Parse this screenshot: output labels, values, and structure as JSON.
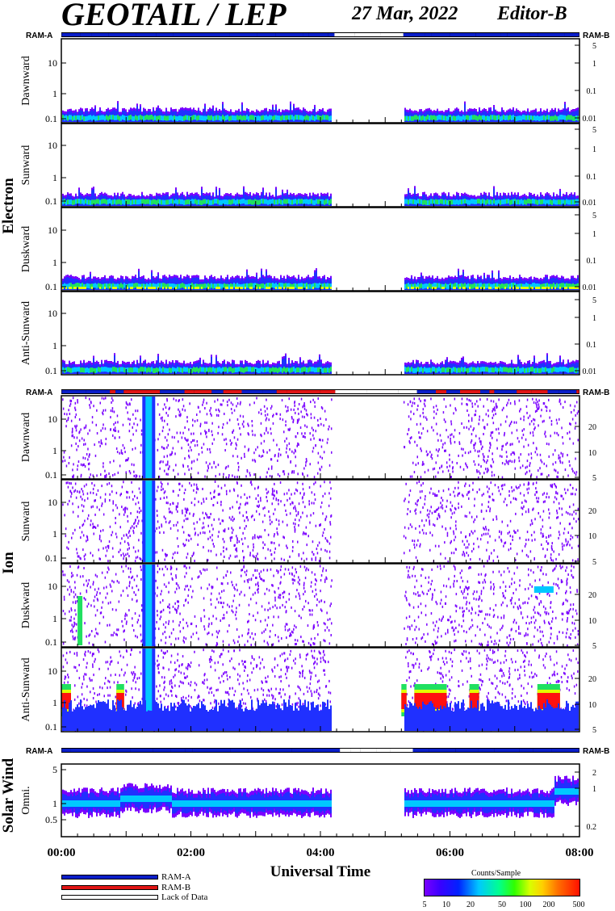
{
  "header": {
    "title": "GEOTAIL / LEP",
    "date": "27 Mar, 2022",
    "editor": "Editor-B"
  },
  "chart_data": {
    "type": "heatmap",
    "xlabel": "Universal Time",
    "x_ticks": [
      "00:00",
      "02:00",
      "04:00",
      "06:00",
      "08:00"
    ],
    "x_range_hours": [
      0,
      8
    ],
    "data_gap_hours": [
      4.17,
      5.28
    ],
    "status_bar_labels": [
      "RAM-A",
      "RAM-B"
    ],
    "groups": [
      {
        "name": "Electron",
        "panels": [
          {
            "label": "Dawnward",
            "left_ticks": [
              "10",
              "1",
              "0.1"
            ],
            "right_ticks": [
              "5",
              "1",
              "0.1",
              "0.01"
            ],
            "level": 0.28
          },
          {
            "label": "Sunward",
            "left_ticks": [
              "10",
              "1",
              "0.1"
            ],
            "right_ticks": [
              "5",
              "1",
              "0.1",
              "0.01"
            ],
            "level": 0.26
          },
          {
            "label": "Duskward",
            "left_ticks": [
              "10",
              "1",
              "0.1"
            ],
            "right_ticks": [
              "5",
              "1",
              "0.1",
              "0.01"
            ],
            "level": 0.3
          },
          {
            "label": "Anti-Sunward",
            "left_ticks": [
              "10",
              "1",
              "0.1"
            ],
            "right_ticks": [
              "5",
              "1",
              "0.1",
              "0.01"
            ],
            "level": 0.27
          }
        ]
      },
      {
        "name": "Ion",
        "panels": [
          {
            "label": "Dawnward",
            "left_ticks": [
              "10",
              "1",
              "0.1"
            ],
            "right_ticks": [
              "20",
              "10",
              "5"
            ]
          },
          {
            "label": "Sunward",
            "left_ticks": [
              "10",
              "1",
              "0.1"
            ],
            "right_ticks": [
              "20",
              "10",
              "5"
            ]
          },
          {
            "label": "Duskward",
            "left_ticks": [
              "10",
              "1",
              "0.1"
            ],
            "right_ticks": [
              "20",
              "10",
              "5"
            ]
          },
          {
            "label": "Anti-Sunward",
            "left_ticks": [
              "10",
              "1",
              "0.1"
            ],
            "right_ticks": [
              "20",
              "10",
              "5"
            ]
          }
        ]
      },
      {
        "name": "Solar Wind",
        "panels": [
          {
            "label": "Omni.",
            "left_ticks": [
              "5",
              "1",
              "0.5"
            ],
            "right_ticks": [
              "2",
              "1",
              "0.2"
            ]
          }
        ]
      }
    ],
    "legend": [
      "RAM-A",
      "RAM-B",
      "Lack of Data"
    ],
    "colorbar": {
      "title": "Counts/Sample",
      "ticks": [
        "5",
        "10",
        "20",
        "50",
        "100",
        "200",
        "500"
      ]
    }
  },
  "colors": {
    "ram_a": "#0a1ec8",
    "ram_b": "#e01414",
    "lack_of_data": "#ffffff",
    "purple": "#7a00ff",
    "blue": "#2030ff",
    "cyan": "#00c8ff",
    "green": "#20e060",
    "yellow": "#e0ff00",
    "red": "#ff1010"
  }
}
